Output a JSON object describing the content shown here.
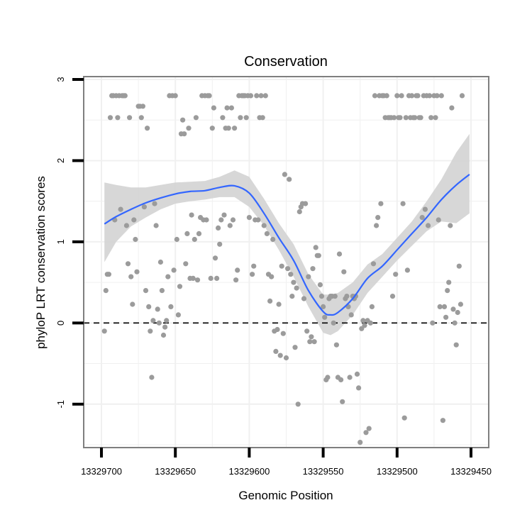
{
  "chart_data": {
    "type": "scatter",
    "title": "Conservation",
    "xlabel": "Genomic Position",
    "ylabel": "phyloP LRT conservation scores",
    "x_reversed": true,
    "xlim": [
      13329450,
      13329700
    ],
    "ylim": [
      -1.5,
      3
    ],
    "x_ticks": [
      13329700,
      13329650,
      13329600,
      13329550,
      13329500,
      13329450
    ],
    "y_ticks": [
      -1,
      0,
      1,
      2,
      3
    ],
    "reference_line": {
      "y": 0,
      "style": "dashed"
    },
    "colors": {
      "points": "#9b9b9b",
      "smooth": "#3366ff",
      "ribbon": "#d3d3d3",
      "grid": "#f0f0f0",
      "frame": "#7f7f7f"
    },
    "points": [
      {
        "x": 13329698,
        "y": -0.1
      },
      {
        "x": 13329697,
        "y": 0.4
      },
      {
        "x": 13329696,
        "y": 0.6
      },
      {
        "x": 13329695,
        "y": 0.6
      },
      {
        "x": 13329694,
        "y": 2.53
      },
      {
        "x": 13329693,
        "y": 2.8
      },
      {
        "x": 13329692,
        "y": 2.8
      },
      {
        "x": 13329691,
        "y": 1.27
      },
      {
        "x": 13329690,
        "y": 2.8
      },
      {
        "x": 13329689,
        "y": 2.53
      },
      {
        "x": 13329688,
        "y": 2.8
      },
      {
        "x": 13329687,
        "y": 1.4
      },
      {
        "x": 13329686,
        "y": 2.8
      },
      {
        "x": 13329685,
        "y": 2.8
      },
      {
        "x": 13329684,
        "y": 2.8
      },
      {
        "x": 13329683,
        "y": 1.2
      },
      {
        "x": 13329682,
        "y": 0.73
      },
      {
        "x": 13329681,
        "y": 2.53
      },
      {
        "x": 13329680,
        "y": 0.57
      },
      {
        "x": 13329679,
        "y": 0.23
      },
      {
        "x": 13329678,
        "y": 1.27
      },
      {
        "x": 13329677,
        "y": 1.03
      },
      {
        "x": 13329676,
        "y": 0.63
      },
      {
        "x": 13329675,
        "y": 2.67
      },
      {
        "x": 13329674,
        "y": 2.67
      },
      {
        "x": 13329673,
        "y": 2.53
      },
      {
        "x": 13329672,
        "y": 2.67
      },
      {
        "x": 13329671,
        "y": 1.43
      },
      {
        "x": 13329670,
        "y": 0.4
      },
      {
        "x": 13329669,
        "y": 2.4
      },
      {
        "x": 13329668,
        "y": 0.2
      },
      {
        "x": 13329667,
        "y": -0.1
      },
      {
        "x": 13329666,
        "y": -0.67
      },
      {
        "x": 13329665,
        "y": 0.03
      },
      {
        "x": 13329664,
        "y": 1.47
      },
      {
        "x": 13329663,
        "y": 1.2
      },
      {
        "x": 13329662,
        "y": 0.17
      },
      {
        "x": 13329661,
        "y": 0.0
      },
      {
        "x": 13329660,
        "y": 0.75
      },
      {
        "x": 13329659,
        "y": 0.4
      },
      {
        "x": 13329658,
        "y": -0.15
      },
      {
        "x": 13329657,
        "y": -0.05
      },
      {
        "x": 13329656,
        "y": 0.03
      },
      {
        "x": 13329655,
        "y": 0.57
      },
      {
        "x": 13329654,
        "y": 2.8
      },
      {
        "x": 13329653,
        "y": 0.2
      },
      {
        "x": 13329652,
        "y": 2.8
      },
      {
        "x": 13329651,
        "y": 0.65
      },
      {
        "x": 13329650,
        "y": 2.8
      },
      {
        "x": 13329649,
        "y": 1.03
      },
      {
        "x": 13329648,
        "y": 0.1
      },
      {
        "x": 13329647,
        "y": 0.45
      },
      {
        "x": 13329646,
        "y": 2.33
      },
      {
        "x": 13329645,
        "y": 2.5
      },
      {
        "x": 13329644,
        "y": 2.33
      },
      {
        "x": 13329643,
        "y": 0.73
      },
      {
        "x": 13329642,
        "y": 1.1
      },
      {
        "x": 13329641,
        "y": 2.4
      },
      {
        "x": 13329640,
        "y": 0.55
      },
      {
        "x": 13329639,
        "y": 1.33
      },
      {
        "x": 13329638,
        "y": 0.55
      },
      {
        "x": 13329637,
        "y": 1.03
      },
      {
        "x": 13329636,
        "y": 2.53
      },
      {
        "x": 13329635,
        "y": 0.53
      },
      {
        "x": 13329634,
        "y": 1.1
      },
      {
        "x": 13329633,
        "y": 1.3
      },
      {
        "x": 13329632,
        "y": 2.8
      },
      {
        "x": 13329631,
        "y": 1.27
      },
      {
        "x": 13329630,
        "y": 2.8
      },
      {
        "x": 13329629,
        "y": 1.27
      },
      {
        "x": 13329628,
        "y": 2.8
      },
      {
        "x": 13329627,
        "y": 2.8
      },
      {
        "x": 13329626,
        "y": 0.55
      },
      {
        "x": 13329625,
        "y": 2.4
      },
      {
        "x": 13329624,
        "y": 2.65
      },
      {
        "x": 13329623,
        "y": 0.8
      },
      {
        "x": 13329622,
        "y": 0.55
      },
      {
        "x": 13329621,
        "y": 1.17
      },
      {
        "x": 13329620,
        "y": 0.97
      },
      {
        "x": 13329619,
        "y": 1.27
      },
      {
        "x": 13329618,
        "y": 2.53
      },
      {
        "x": 13329617,
        "y": 1.33
      },
      {
        "x": 13329616,
        "y": 2.4
      },
      {
        "x": 13329615,
        "y": 2.65
      },
      {
        "x": 13329614,
        "y": 2.4
      },
      {
        "x": 13329613,
        "y": 1.2
      },
      {
        "x": 13329612,
        "y": 2.65
      },
      {
        "x": 13329611,
        "y": 1.27
      },
      {
        "x": 13329610,
        "y": 2.4
      },
      {
        "x": 13329609,
        "y": 0.53
      },
      {
        "x": 13329608,
        "y": 0.65
      },
      {
        "x": 13329607,
        "y": 2.8
      },
      {
        "x": 13329606,
        "y": 2.53
      },
      {
        "x": 13329605,
        "y": 2.8
      },
      {
        "x": 13329604,
        "y": 2.8
      },
      {
        "x": 13329603,
        "y": 2.8
      },
      {
        "x": 13329602,
        "y": 2.53
      },
      {
        "x": 13329601,
        "y": 2.8
      },
      {
        "x": 13329600,
        "y": 1.3
      },
      {
        "x": 13329599,
        "y": 2.8
      },
      {
        "x": 13329598,
        "y": 0.6
      },
      {
        "x": 13329597,
        "y": 0.7
      },
      {
        "x": 13329596,
        "y": 1.27
      },
      {
        "x": 13329595,
        "y": 2.8
      },
      {
        "x": 13329594,
        "y": 1.27
      },
      {
        "x": 13329593,
        "y": 2.53
      },
      {
        "x": 13329592,
        "y": 2.8
      },
      {
        "x": 13329591,
        "y": 2.53
      },
      {
        "x": 13329590,
        "y": 1.2
      },
      {
        "x": 13329589,
        "y": 2.8
      },
      {
        "x": 13329588,
        "y": 1.1
      },
      {
        "x": 13329587,
        "y": 0.6
      },
      {
        "x": 13329586,
        "y": 0.27
      },
      {
        "x": 13329585,
        "y": 0.57
      },
      {
        "x": 13329584,
        "y": 1.03
      },
      {
        "x": 13329583,
        "y": -0.1
      },
      {
        "x": 13329582,
        "y": -0.35
      },
      {
        "x": 13329581,
        "y": -0.08
      },
      {
        "x": 13329580,
        "y": 0.23
      },
      {
        "x": 13329579,
        "y": -0.4
      },
      {
        "x": 13329578,
        "y": 0.7
      },
      {
        "x": 13329577,
        "y": -0.13
      },
      {
        "x": 13329576,
        "y": 1.83
      },
      {
        "x": 13329575,
        "y": -0.43
      },
      {
        "x": 13329574,
        "y": 0.67
      },
      {
        "x": 13329573,
        "y": 1.77
      },
      {
        "x": 13329572,
        "y": 0.6
      },
      {
        "x": 13329571,
        "y": 0.33
      },
      {
        "x": 13329570,
        "y": 0.5
      },
      {
        "x": 13329569,
        "y": -0.3
      },
      {
        "x": 13329568,
        "y": 0.43
      },
      {
        "x": 13329567,
        "y": -1.0
      },
      {
        "x": 13329566,
        "y": 1.37
      },
      {
        "x": 13329565,
        "y": 1.43
      },
      {
        "x": 13329564,
        "y": 1.47
      },
      {
        "x": 13329563,
        "y": 0.3
      },
      {
        "x": 13329562,
        "y": 1.47
      },
      {
        "x": 13329561,
        "y": -0.1
      },
      {
        "x": 13329560,
        "y": 0.57
      },
      {
        "x": 13329559,
        "y": -0.23
      },
      {
        "x": 13329558,
        "y": -0.17
      },
      {
        "x": 13329557,
        "y": 0.67
      },
      {
        "x": 13329556,
        "y": -0.23
      },
      {
        "x": 13329555,
        "y": 0.93
      },
      {
        "x": 13329554,
        "y": 0.83
      },
      {
        "x": 13329553,
        "y": 0.83
      },
      {
        "x": 13329552,
        "y": 0.47
      },
      {
        "x": 13329551,
        "y": 0.33
      },
      {
        "x": 13329550,
        "y": 0.2
      },
      {
        "x": 13329549,
        "y": 0.07
      },
      {
        "x": 13329548,
        "y": -0.7
      },
      {
        "x": 13329547,
        "y": -0.67
      },
      {
        "x": 13329546,
        "y": 0.3
      },
      {
        "x": 13329545,
        "y": 0.33
      },
      {
        "x": 13329544,
        "y": 0.33
      },
      {
        "x": 13329543,
        "y": 0.0
      },
      {
        "x": 13329542,
        "y": 0.33
      },
      {
        "x": 13329541,
        "y": -0.27
      },
      {
        "x": 13329540,
        "y": -0.67
      },
      {
        "x": 13329539,
        "y": 0.85
      },
      {
        "x": 13329538,
        "y": -0.7
      },
      {
        "x": 13329537,
        "y": -0.97
      },
      {
        "x": 13329536,
        "y": 0.63
      },
      {
        "x": 13329535,
        "y": 0.3
      },
      {
        "x": 13329534,
        "y": 0.33
      },
      {
        "x": 13329533,
        "y": 0.2
      },
      {
        "x": 13329532,
        "y": -0.67
      },
      {
        "x": 13329531,
        "y": 0.1
      },
      {
        "x": 13329530,
        "y": 0.33
      },
      {
        "x": 13329529,
        "y": 0.3
      },
      {
        "x": 13329528,
        "y": 0.33
      },
      {
        "x": 13329527,
        "y": -0.63
      },
      {
        "x": 13329526,
        "y": -0.8
      },
      {
        "x": 13329525,
        "y": -1.47
      },
      {
        "x": 13329524,
        "y": -0.07
      },
      {
        "x": 13329523,
        "y": 0.03
      },
      {
        "x": 13329522,
        "y": -0.03
      },
      {
        "x": 13329521,
        "y": -1.35
      },
      {
        "x": 13329520,
        "y": 0.03
      },
      {
        "x": 13329519,
        "y": -1.3
      },
      {
        "x": 13329518,
        "y": 0.0
      },
      {
        "x": 13329517,
        "y": 0.2
      },
      {
        "x": 13329516,
        "y": 0.73
      },
      {
        "x": 13329515,
        "y": 2.8
      },
      {
        "x": 13329514,
        "y": 1.2
      },
      {
        "x": 13329513,
        "y": 1.3
      },
      {
        "x": 13329512,
        "y": 2.8
      },
      {
        "x": 13329511,
        "y": 1.47
      },
      {
        "x": 13329510,
        "y": 2.8
      },
      {
        "x": 13329509,
        "y": 2.8
      },
      {
        "x": 13329508,
        "y": 2.53
      },
      {
        "x": 13329507,
        "y": 2.8
      },
      {
        "x": 13329506,
        "y": 2.53
      },
      {
        "x": 13329505,
        "y": 2.53
      },
      {
        "x": 13329504,
        "y": 2.53
      },
      {
        "x": 13329503,
        "y": 0.33
      },
      {
        "x": 13329502,
        "y": 2.53
      },
      {
        "x": 13329501,
        "y": 0.6
      },
      {
        "x": 13329500,
        "y": 2.8
      },
      {
        "x": 13329499,
        "y": 2.53
      },
      {
        "x": 13329498,
        "y": 2.53
      },
      {
        "x": 13329497,
        "y": 2.8
      },
      {
        "x": 13329496,
        "y": 1.47
      },
      {
        "x": 13329495,
        "y": -1.17
      },
      {
        "x": 13329494,
        "y": 2.53
      },
      {
        "x": 13329493,
        "y": 0.65
      },
      {
        "x": 13329492,
        "y": 2.8
      },
      {
        "x": 13329491,
        "y": 2.53
      },
      {
        "x": 13329490,
        "y": 2.8
      },
      {
        "x": 13329489,
        "y": 2.53
      },
      {
        "x": 13329488,
        "y": 2.53
      },
      {
        "x": 13329487,
        "y": 2.8
      },
      {
        "x": 13329486,
        "y": 2.8
      },
      {
        "x": 13329485,
        "y": 2.53
      },
      {
        "x": 13329484,
        "y": 2.53
      },
      {
        "x": 13329483,
        "y": 1.3
      },
      {
        "x": 13329482,
        "y": 2.8
      },
      {
        "x": 13329481,
        "y": 1.4
      },
      {
        "x": 13329480,
        "y": 2.8
      },
      {
        "x": 13329479,
        "y": 1.2
      },
      {
        "x": 13329478,
        "y": 2.8
      },
      {
        "x": 13329477,
        "y": 2.53
      },
      {
        "x": 13329476,
        "y": 0.0
      },
      {
        "x": 13329475,
        "y": 2.8
      },
      {
        "x": 13329474,
        "y": 2.53
      },
      {
        "x": 13329473,
        "y": 2.8
      },
      {
        "x": 13329472,
        "y": 1.27
      },
      {
        "x": 13329471,
        "y": 0.2
      },
      {
        "x": 13329470,
        "y": 2.8
      },
      {
        "x": 13329469,
        "y": -1.2
      },
      {
        "x": 13329468,
        "y": 0.2
      },
      {
        "x": 13329467,
        "y": 0.07
      },
      {
        "x": 13329466,
        "y": 0.4
      },
      {
        "x": 13329465,
        "y": 0.5
      },
      {
        "x": 13329464,
        "y": 1.2
      },
      {
        "x": 13329463,
        "y": 2.65
      },
      {
        "x": 13329462,
        "y": 0.17
      },
      {
        "x": 13329461,
        "y": 0.0
      },
      {
        "x": 13329460,
        "y": -0.27
      },
      {
        "x": 13329459,
        "y": 0.13
      },
      {
        "x": 13329458,
        "y": 0.7
      },
      {
        "x": 13329457,
        "y": 0.23
      },
      {
        "x": 13329456,
        "y": 2.8
      }
    ],
    "smooth": [
      {
        "x": 13329698,
        "y": 1.22,
        "lo": 0.75,
        "hi": 1.73
      },
      {
        "x": 13329690,
        "y": 1.31,
        "lo": 1.0,
        "hi": 1.7
      },
      {
        "x": 13329680,
        "y": 1.4,
        "lo": 1.19,
        "hi": 1.67
      },
      {
        "x": 13329670,
        "y": 1.48,
        "lo": 1.3,
        "hi": 1.67
      },
      {
        "x": 13329660,
        "y": 1.54,
        "lo": 1.4,
        "hi": 1.7
      },
      {
        "x": 13329650,
        "y": 1.59,
        "lo": 1.47,
        "hi": 1.73
      },
      {
        "x": 13329640,
        "y": 1.62,
        "lo": 1.5,
        "hi": 1.74
      },
      {
        "x": 13329630,
        "y": 1.63,
        "lo": 1.52,
        "hi": 1.75
      },
      {
        "x": 13329620,
        "y": 1.67,
        "lo": 1.55,
        "hi": 1.8
      },
      {
        "x": 13329610,
        "y": 1.69,
        "lo": 1.55,
        "hi": 1.88
      },
      {
        "x": 13329600,
        "y": 1.6,
        "lo": 1.43,
        "hi": 1.8
      },
      {
        "x": 13329590,
        "y": 1.35,
        "lo": 1.2,
        "hi": 1.53
      },
      {
        "x": 13329580,
        "y": 1.05,
        "lo": 0.9,
        "hi": 1.23
      },
      {
        "x": 13329570,
        "y": 0.77,
        "lo": 0.57,
        "hi": 0.97
      },
      {
        "x": 13329560,
        "y": 0.4,
        "lo": 0.2,
        "hi": 0.6
      },
      {
        "x": 13329550,
        "y": 0.14,
        "lo": -0.12,
        "hi": 0.35
      },
      {
        "x": 13329545,
        "y": 0.1,
        "lo": -0.15,
        "hi": 0.35
      },
      {
        "x": 13329540,
        "y": 0.13,
        "lo": -0.1,
        "hi": 0.37
      },
      {
        "x": 13329530,
        "y": 0.3,
        "lo": 0.1,
        "hi": 0.5
      },
      {
        "x": 13329520,
        "y": 0.55,
        "lo": 0.37,
        "hi": 0.72
      },
      {
        "x": 13329510,
        "y": 0.7,
        "lo": 0.57,
        "hi": 0.85
      },
      {
        "x": 13329500,
        "y": 0.9,
        "lo": 0.77,
        "hi": 1.05
      },
      {
        "x": 13329490,
        "y": 1.1,
        "lo": 0.95,
        "hi": 1.25
      },
      {
        "x": 13329480,
        "y": 1.3,
        "lo": 1.13,
        "hi": 1.5
      },
      {
        "x": 13329470,
        "y": 1.52,
        "lo": 1.25,
        "hi": 1.77
      },
      {
        "x": 13329460,
        "y": 1.7,
        "lo": 1.23,
        "hi": 2.1
      },
      {
        "x": 13329451,
        "y": 1.83,
        "lo": 1.35,
        "hi": 2.33
      }
    ]
  }
}
